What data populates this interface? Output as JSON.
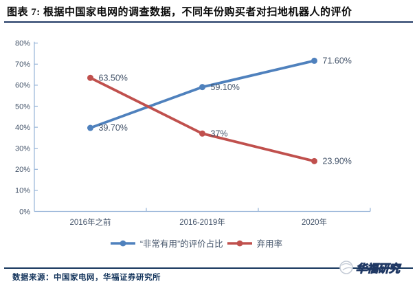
{
  "header": {
    "title": "图表 7: 根据中国家电网的调查数据，不同年份购买者对扫地机器人的评价"
  },
  "footer": {
    "source": "数据来源：中国家电网，华福证券研究所",
    "watermark": "华福研究"
  },
  "colors": {
    "title_rule": "#1F3864",
    "footer_rule": "#17375E",
    "blue_series": "#4F81BD",
    "red_series": "#C0504D"
  },
  "chart_data": {
    "type": "line",
    "title": "",
    "categories": [
      "2016年之前",
      "2016-2019年",
      "2020年"
    ],
    "series": [
      {
        "name": "“非常有用”的评价占比",
        "color": "#4F81BD",
        "values": [
          39.7,
          59.1,
          71.6
        ],
        "data_labels": [
          "39.70%",
          "59.10%",
          "71.60%"
        ]
      },
      {
        "name": "弃用率",
        "color": "#C0504D",
        "values": [
          63.5,
          37,
          23.9
        ],
        "data_labels": [
          "63.50%",
          "37%",
          "23.90%"
        ]
      }
    ],
    "ylim": [
      0,
      80
    ],
    "ytick_step": 10,
    "ytick_labels": [
      "0%",
      "10%",
      "20%",
      "30%",
      "40%",
      "50%",
      "60%",
      "70%",
      "80%"
    ],
    "grid": false,
    "legend_position": "bottom",
    "axis_color": "#95B3D7",
    "label_color": "#44546A"
  }
}
